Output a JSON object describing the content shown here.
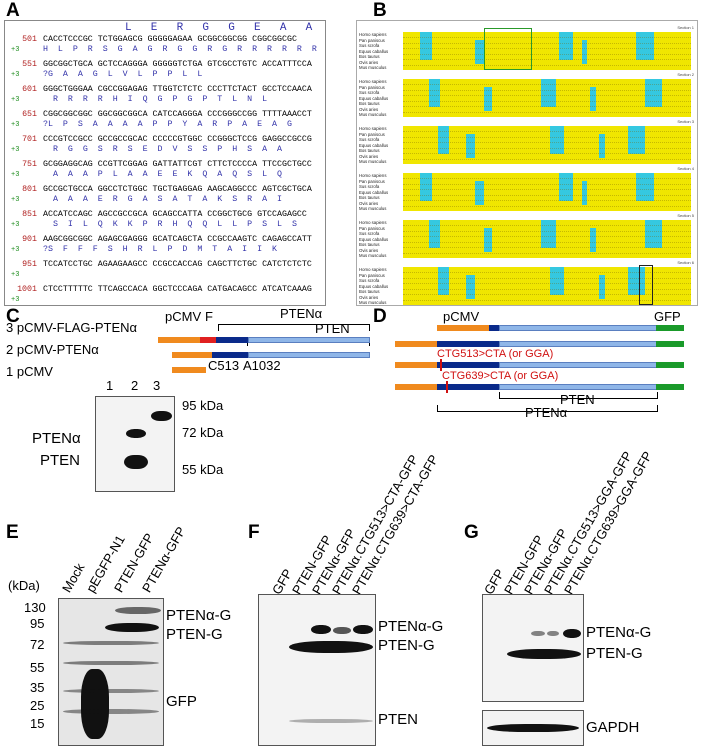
{
  "panels": {
    "A": "A",
    "B": "B",
    "C": "C",
    "D": "D",
    "E": "E",
    "F": "F",
    "G": "G"
  },
  "panelA": {
    "rows": [
      {
        "num": "501",
        "dna": "CACCTCCCGC TCTGGAGCG GGGGGAGAA GCGGCGGCGG CGGCGGCGC",
        "frame": "+3",
        "aa": "H  L  P  R  S  G  A  G  R  G  G  R  G  R  R  R  R  R  R"
      },
      {
        "num": "551",
        "dna": "GGCGGCTGCA GCTCCAGGGA GGGGGTCTGA GTCGCCTGTC ACCATTTCCA",
        "frame": "+3",
        "aa": "?G  A  A  G  L  V  L  P  P  L  L"
      },
      {
        "num": "601",
        "dna": "GGGCTGGGAA CGCCGGAGAG TTGGTCTCTC CCCTTCTACT GCCTCCAACA",
        "frame": "+3",
        "aa": "  R  R  R  R  H  I  Q  G  P  G  P  T  L  N  L"
      },
      {
        "num": "651",
        "dna": "CGGCGGCGGC GGCGGCGGCA CATCCAGGGA CCCGGGCCGG TTTTAAACCT",
        "frame": "+3",
        "aa": "?L  P  S  A  A  A  A  P  P  Y  A  R  P  A  E  A  G"
      },
      {
        "num": "701",
        "dna": "CCCGTCCGCC GCCGCCGCAC CCCCCGTGGC CCGGGCTCCG GAGGCCGCCG",
        "frame": "+3",
        "aa": "  R  G  G  S  R  S  E  D  V  S  S  P  H  S  A  A"
      },
      {
        "num": "751",
        "dna": "GCGGAGGCAG CCGTTCGGAG GATTATTCGT CTTCTCCCCA TTCCGCTGCC",
        "frame": "+3",
        "aa": "  A  A  A  P  L  A  A  E  E  K  Q  A  Q  S  L  Q"
      },
      {
        "num": "801",
        "dna": "GCCGCTGCCA GGCCTCTGGC TGCTGAGGAG AAGCAGGCCC AGTCGCTGCA",
        "frame": "+3",
        "aa": "  A  A  A  E  R  G  A  S  A  T  A  K  S  R  A  I"
      },
      {
        "num": "851",
        "dna": "ACCATCCAGC AGCCGCCGCA GCAGCCATTA CCGGCTGCG GTCCAGAGCC",
        "frame": "+3",
        "aa": "  S  I  L  Q  K  K  P  R  H  Q  Q  L  L  P  S  L  S"
      },
      {
        "num": "901",
        "dna": "AAGCGGCGGC AGAGCGAGGG GCATCAGCTA CCGCCAAGTC CAGAGCCATT",
        "frame": "+3",
        "aa": "?S  F  F  F  S  H  R  L  P  D  M  T  A  I  I  K"
      },
      {
        "num": "951",
        "dna": "TCCATCCTGC AGAAGAAGCC CCGCCACCAG CAGCTTCTGC CATCTCTCTC",
        "frame": "+3",
        "aa": ""
      },
      {
        "num": "1001",
        "dna": "CTCCTTTTTC TTCAGCCACA GGCTCCCAGA CATGACAGCC ATCATCAAAG",
        "frame": "+3",
        "aa": ""
      }
    ],
    "top_aa": "L  E  R  G  G  E  A  A  A  A  A"
  },
  "panelB": {
    "species": [
      "Homo sapiens",
      "Pan paniscus",
      "Sus scrofa",
      "Equus caballus",
      "Bos taurus",
      "Ovis aries",
      "Mus musculus"
    ],
    "sections": [
      "Section 1",
      "Section 2",
      "Section 3",
      "Section 4",
      "Section 5",
      "Section 6"
    ]
  },
  "panelC": {
    "constructs": [
      "3 pCMV-FLAG-PTENα",
      "2 pCMV-PTENα",
      "1 pCMV"
    ],
    "pcmv": "pCMV",
    "flag": "F",
    "ptena": "PTENα",
    "pten": "PTEN",
    "c513": "C513",
    "a1032": "A1032",
    "lanes": [
      "1",
      "2",
      "3"
    ],
    "markers": [
      "95 kDa",
      "72 kDa",
      "55 kDa"
    ],
    "bands": [
      "PTENα",
      "PTEN"
    ]
  },
  "panelD": {
    "pcmv": "pCMV",
    "gfp": "GFP",
    "mut1": "CTG513>CTA (or GGA)",
    "mut2": "CTG639>CTA (or GGA)",
    "pten": "PTEN",
    "ptena": "PTENα"
  },
  "panelE": {
    "kda": "(kDa)",
    "lanes": [
      "Mock",
      "pEGFP-N1",
      "PTEN-GFP",
      "PTENα-GFP"
    ],
    "markers": [
      "130",
      "95",
      "72",
      "55",
      "35",
      "25",
      "15"
    ],
    "bands": [
      "PTENα-G",
      "PTEN-G",
      "GFP"
    ]
  },
  "panelF": {
    "lanes": [
      "GFP",
      "PTEN-GFP",
      "PTENα-GFP",
      "PTENα.CTG513>CTA-GFP",
      "PTENα.CTG639>CTA-GFP"
    ],
    "bands": [
      "PTENα-G",
      "PTEN-G",
      "PTEN"
    ]
  },
  "panelG": {
    "lanes": [
      "GFP",
      "PTEN-GFP",
      "PTENα-GFP",
      "PTENα.CTG513>GGA-GFP",
      "PTENα.CTG639>GGA-GFP"
    ],
    "bands": [
      "PTENα-G",
      "PTEN-G",
      "GAPDH"
    ]
  }
}
